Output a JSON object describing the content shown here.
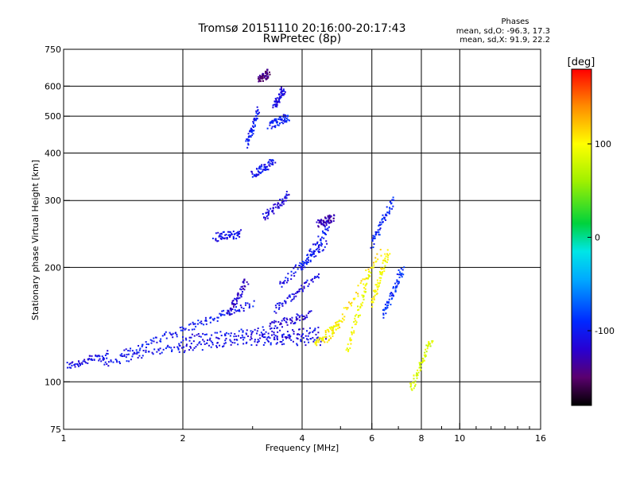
{
  "chart_data": {
    "type": "scatter",
    "title": "Tromsø 20151110 20:16:00-20:17:43",
    "subtitle": "RwPretec (8p)",
    "xlabel": "Frequency [MHz]",
    "ylabel": "Stationary phase Virtual Height [km]",
    "x_scale": "log2",
    "y_scale": "log",
    "xlim": [
      1,
      16
    ],
    "ylim": [
      75,
      750
    ],
    "x_ticks": [
      1,
      2,
      4,
      6,
      8,
      10,
      16
    ],
    "x_tick_labels": [
      "1",
      "2",
      "4",
      "6",
      "8",
      "10",
      "16"
    ],
    "x_minor_ticks": [
      3,
      5,
      7,
      9,
      11,
      12,
      13,
      14,
      15
    ],
    "y_ticks": [
      75,
      100,
      200,
      300,
      400,
      500,
      600,
      750
    ],
    "y_tick_labels": [
      "75",
      "100",
      "200",
      "300",
      "400",
      "500",
      "600",
      "750"
    ],
    "grid": true,
    "colorbar": {
      "label": "[deg]",
      "range": [
        -180,
        180
      ],
      "ticks": [
        100,
        0,
        -100
      ],
      "tick_labels": [
        "100",
        "0",
        "-100"
      ]
    },
    "stats_box": {
      "title": "Phases",
      "line1": "mean, sd,O: -96.3, 17.3",
      "line2": "mean, sd,X:  91.9, 22.2"
    },
    "series": [
      {
        "comment_free_name": "",
        "traces": [
          {
            "x": [
              1.02,
              1.3
            ],
            "y": [
              110,
              118
            ],
            "phase": -110
          },
          {
            "x": [
              1.25,
              2.0
            ],
            "y": [
              112,
              125
            ],
            "phase": -105
          },
          {
            "x": [
              1.4,
              2.1
            ],
            "y": [
              118,
              140
            ],
            "phase": -100
          },
          {
            "x": [
              1.95,
              3.0
            ],
            "y": [
              122,
              130
            ],
            "phase": -110
          },
          {
            "x": [
              2.0,
              3.2
            ],
            "y": [
              130,
              136
            ],
            "phase": -105
          },
          {
            "x": [
              2.1,
              3.0
            ],
            "y": [
              140,
              160
            ],
            "phase": -100
          },
          {
            "x": [
              2.6,
              2.9
            ],
            "y": [
              150,
              185
            ],
            "phase": -120
          },
          {
            "x": [
              3.0,
              4.6
            ],
            "y": [
              128,
              128
            ],
            "phase": -108
          },
          {
            "x": [
              3.1,
              4.4
            ],
            "y": [
              132,
              136
            ],
            "phase": -110
          },
          {
            "x": [
              3.3,
              4.2
            ],
            "y": [
              140,
              150
            ],
            "phase": -115
          },
          {
            "x": [
              3.4,
              4.4
            ],
            "y": [
              155,
              190
            ],
            "phase": -110
          },
          {
            "x": [
              3.5,
              4.6
            ],
            "y": [
              180,
              230
            ],
            "phase": -105
          },
          {
            "x": [
              4.0,
              4.7
            ],
            "y": [
              200,
              260
            ],
            "phase": -100
          },
          {
            "x": [
              4.4,
              4.8
            ],
            "y": [
              260,
              270
            ],
            "phase": -130
          },
          {
            "x": [
              3.1,
              3.3
            ],
            "y": [
              620,
              650
            ],
            "phase": -145
          },
          {
            "x": [
              3.3,
              3.7
            ],
            "y": [
              470,
              500
            ],
            "phase": -95
          },
          {
            "x": [
              3.4,
              3.6
            ],
            "y": [
              530,
              590
            ],
            "phase": -110
          },
          {
            "x": [
              3.0,
              3.4
            ],
            "y": [
              350,
              380
            ],
            "phase": -105
          },
          {
            "x": [
              3.2,
              3.7
            ],
            "y": [
              270,
              310
            ],
            "phase": -115
          },
          {
            "x": [
              2.4,
              2.8
            ],
            "y": [
              240,
              245
            ],
            "phase": -105
          },
          {
            "x": [
              2.9,
              3.1
            ],
            "y": [
              420,
              520
            ],
            "phase": -100
          },
          {
            "x": [
              4.6,
              6.3
            ],
            "y": [
              125,
              220
            ],
            "phase": 110
          },
          {
            "x": [
              4.3,
              5.0
            ],
            "y": [
              125,
              145
            ],
            "phase": 100
          },
          {
            "x": [
              5.2,
              6.0
            ],
            "y": [
              120,
              200
            ],
            "phase": 95
          },
          {
            "x": [
              6.0,
              6.6
            ],
            "y": [
              160,
              220
            ],
            "phase": 100
          },
          {
            "x": [
              6.4,
              7.2
            ],
            "y": [
              150,
              200
            ],
            "phase": -90
          },
          {
            "x": [
              6.0,
              6.8
            ],
            "y": [
              230,
              300
            ],
            "phase": -95
          },
          {
            "x": [
              7.5,
              8.5
            ],
            "y": [
              95,
              130
            ],
            "phase": 80
          }
        ]
      }
    ]
  }
}
